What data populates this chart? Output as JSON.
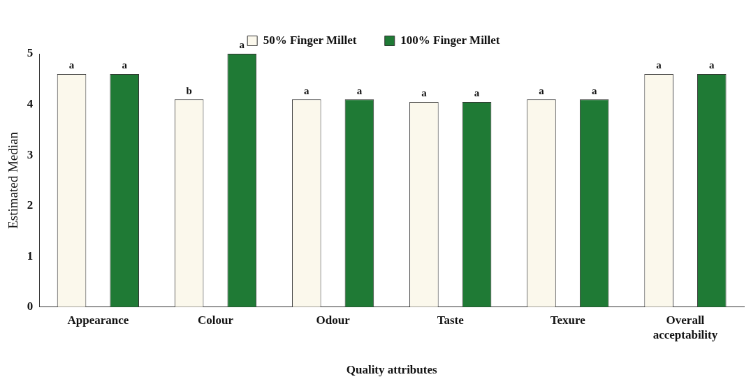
{
  "chart_data": {
    "type": "bar",
    "xlabel": "Quality attributes",
    "ylabel": "Estimated Median",
    "categories": [
      "Appearance",
      "Colour",
      "Odour",
      "Taste",
      "Texure",
      "Overall acceptability"
    ],
    "series": [
      {
        "name": "50% Finger Millet",
        "color": "#fbf8ec",
        "values": [
          4.6,
          4.1,
          4.1,
          4.05,
          4.1,
          4.6
        ],
        "value_labels": [
          "a",
          "b",
          "a",
          "a",
          "a",
          "a"
        ]
      },
      {
        "name": "100% Finger Millet",
        "color": "#1f7a35",
        "values": [
          4.6,
          5.0,
          4.1,
          4.05,
          4.1,
          4.6
        ],
        "value_labels": [
          "a",
          "a",
          "a",
          "a",
          "a",
          "a"
        ]
      }
    ],
    "ylim": [
      0,
      5
    ],
    "yticks": [
      0,
      1,
      2,
      3,
      4,
      5
    ],
    "grid": false,
    "legend": "top"
  }
}
